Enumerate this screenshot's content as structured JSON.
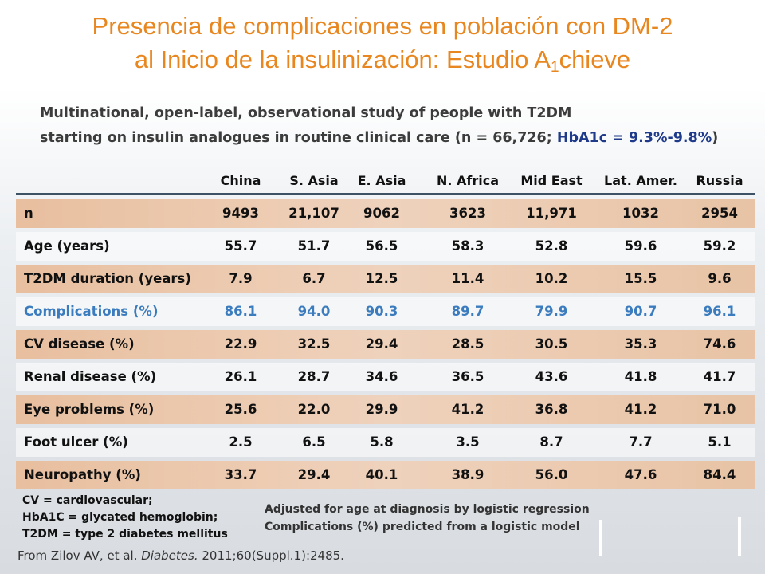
{
  "title": {
    "line1": "Presencia de complicaciones en población con DM-2",
    "line2_pre": "al Inicio de la insulinización: Estudio A",
    "line2_sub": "1",
    "line2_post": "chieve"
  },
  "subtitle": {
    "line1": "Multinational, open-label, observational study of people with T2DM",
    "line2_pre": "starting on insulin analogues in routine clinical care (n = 66,726; ",
    "hba1c": "HbA1c = 9.3%-9.8%",
    "line2_post": ")"
  },
  "table": {
    "columns": [
      "China",
      "S. Asia",
      "E. Asia",
      "N. Africa",
      "Mid East",
      "Lat. Amer.",
      "Russia"
    ],
    "rows": [
      {
        "label": "n",
        "values": [
          "9493",
          "21,107",
          "9062",
          "3623",
          "11,971",
          "1032",
          "2954"
        ]
      },
      {
        "label": "Age (years)",
        "values": [
          "55.7",
          "51.7",
          "56.5",
          "58.3",
          "52.8",
          "59.6",
          "59.2"
        ]
      },
      {
        "label": "T2DM duration  (years)",
        "values": [
          "7.9",
          "6.7",
          "12.5",
          "11.4",
          "10.2",
          "15.5",
          "9.6"
        ]
      },
      {
        "label": "Complications  (%)",
        "values": [
          "86.1",
          "94.0",
          "90.3",
          "89.7",
          "79.9",
          "90.7",
          "96.1"
        ]
      },
      {
        "label": "CV disease (%)",
        "values": [
          "22.9",
          "32.5",
          "29.4",
          "28.5",
          "30.5",
          "35.3",
          "74.6"
        ]
      },
      {
        "label": "Renal disease  (%)",
        "values": [
          "26.1",
          "28.7",
          "34.6",
          "36.5",
          "43.6",
          "41.8",
          "41.7"
        ]
      },
      {
        "label": "Eye problems  (%)",
        "values": [
          "25.6",
          "22.0",
          "29.9",
          "41.2",
          "36.8",
          "41.2",
          "71.0"
        ]
      },
      {
        "label": "Foot ulcer (%)",
        "values": [
          "2.5",
          "6.5",
          "5.8",
          "3.5",
          "8.7",
          "7.7",
          "5.1"
        ]
      },
      {
        "label": "Neuropathy (%)",
        "values": [
          "33.7",
          "29.4",
          "40.1",
          "38.9",
          "56.0",
          "47.6",
          "84.4"
        ]
      }
    ]
  },
  "abbreviations": [
    "CV = cardiovascular;",
    "HbA1C = glycated hemoglobin;",
    "T2DM = type 2 diabetes mellitus"
  ],
  "notes": [
    "Adjusted for age at diagnosis by logistic regression",
    "Complications (%) predicted from a logistic model"
  ],
  "source": {
    "pre": "From Zilov AV, et al. ",
    "journal": "Diabetes.",
    "post": " 2011;60(Suppl.1):2485."
  },
  "colors": {
    "title": "#e8861f",
    "highlight_row": "#3b7cbf",
    "hba1c": "#1f3a8a",
    "shaded_row": "#ebc7aa"
  }
}
